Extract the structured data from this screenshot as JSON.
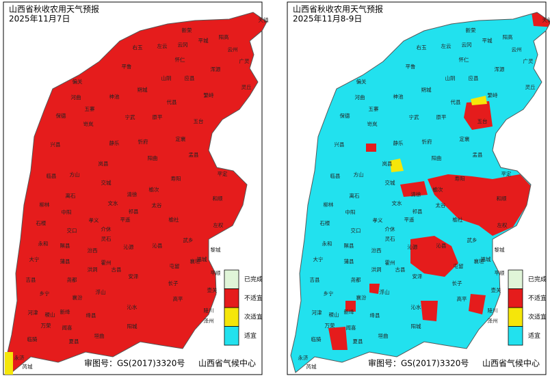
{
  "panels": [
    {
      "title": "山西省秋收农用天气预报",
      "date": "2025年11月7日"
    },
    {
      "title": "山西省秋收农用天气预报",
      "date": "2025年11月8-9日"
    }
  ],
  "legend": [
    {
      "label": "已完成",
      "color": "#e0f5d8"
    },
    {
      "label": "不适宜",
      "color": "#e51c1c"
    },
    {
      "label": "次适宜",
      "color": "#f5e60a"
    },
    {
      "label": "适宜",
      "color": "#22e1ee"
    }
  ],
  "footer": {
    "approval": "审图号：GS(2017)3320号",
    "agency": "山西省气候中心"
  },
  "counties": [
    "天镇",
    "阳高",
    "新荣",
    "右玉",
    "左云",
    "云冈",
    "平城",
    "云州",
    "怀仁",
    "广灵",
    "平鲁",
    "山阴",
    "应县",
    "浑源",
    "灵丘",
    "偏关",
    "朔城",
    "河曲",
    "神池",
    "代县",
    "繁峙",
    "五寨",
    "宁武",
    "原平",
    "保德",
    "岢岚",
    "五台",
    "兴县",
    "静乐",
    "忻府",
    "定襄",
    "盂县",
    "阳曲",
    "岚县",
    "临县",
    "方山",
    "交城",
    "清徐",
    "寿阳",
    "平定",
    "离石",
    "柳林",
    "中阳",
    "文水",
    "太谷",
    "榆次",
    "和顺",
    "石楼",
    "孝义",
    "平遥",
    "祁县",
    "榆社",
    "左权",
    "交口",
    "介休",
    "灵石",
    "沁县",
    "武乡",
    "黎城",
    "永和",
    "隰县",
    "汾西",
    "霍州",
    "沁源",
    "襄垣",
    "大宁",
    "蒲县",
    "洪洞",
    "古县",
    "屯留",
    "潞城",
    "平顺",
    "吉县",
    "尧都",
    "浮山",
    "安泽",
    "长子",
    "壶关",
    "乡宁",
    "襄汾",
    "高平",
    "陵川",
    "河津",
    "稷山",
    "新绛",
    "绛县",
    "沁水",
    "泽州",
    "万荣",
    "闻喜",
    "垣曲",
    "阳城",
    "临猗",
    "夏县",
    "永济",
    "芮城"
  ]
}
